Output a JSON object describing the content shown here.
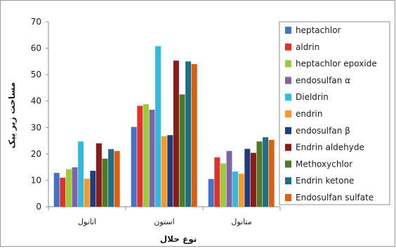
{
  "chart_data": {
    "type": "bar",
    "xlabel": "نوع حلال",
    "ylabel": "مساحت زیر پیک",
    "ylim": [
      0,
      70
    ],
    "yticks": [
      0,
      10,
      20,
      30,
      40,
      50,
      60,
      70
    ],
    "categories": [
      "اتانول",
      "استون",
      "متانول"
    ],
    "legend_position": "right",
    "grid": false,
    "series": [
      {
        "name": "heptachlor",
        "color": "#4472C4",
        "values": [
          12.8,
          30.2,
          10.5
        ]
      },
      {
        "name": "aldrin",
        "color": "#E0322C",
        "values": [
          11.0,
          38.2,
          18.7
        ]
      },
      {
        "name": "heptachlor epoxide",
        "color": "#9BCB3C",
        "values": [
          14.2,
          38.8,
          16.4
        ]
      },
      {
        "name": "endosulfan α",
        "color": "#8064A2",
        "values": [
          14.9,
          36.7,
          21.1
        ]
      },
      {
        "name": "Dieldrin",
        "color": "#33B8E0",
        "values": [
          24.7,
          60.8,
          13.3
        ]
      },
      {
        "name": "endrin",
        "color": "#F79A2B",
        "values": [
          10.6,
          26.7,
          12.5
        ]
      },
      {
        "name": "endosulfan β",
        "color": "#1F3D7A",
        "values": [
          13.6,
          27.1,
          21.9
        ]
      },
      {
        "name": "Endrin aldehyde",
        "color": "#8B1A1A",
        "values": [
          24.0,
          55.3,
          20.4
        ]
      },
      {
        "name": "Methoxychlor",
        "color": "#4E7A2A",
        "values": [
          18.2,
          42.5,
          24.7
        ]
      },
      {
        "name": "Endrin ketone",
        "color": "#1E6E85",
        "values": [
          21.8,
          55.0,
          26.3
        ]
      },
      {
        "name": "Endosulfan sulfate",
        "color": "#D86012",
        "values": [
          21.1,
          54.0,
          25.3
        ]
      }
    ]
  }
}
